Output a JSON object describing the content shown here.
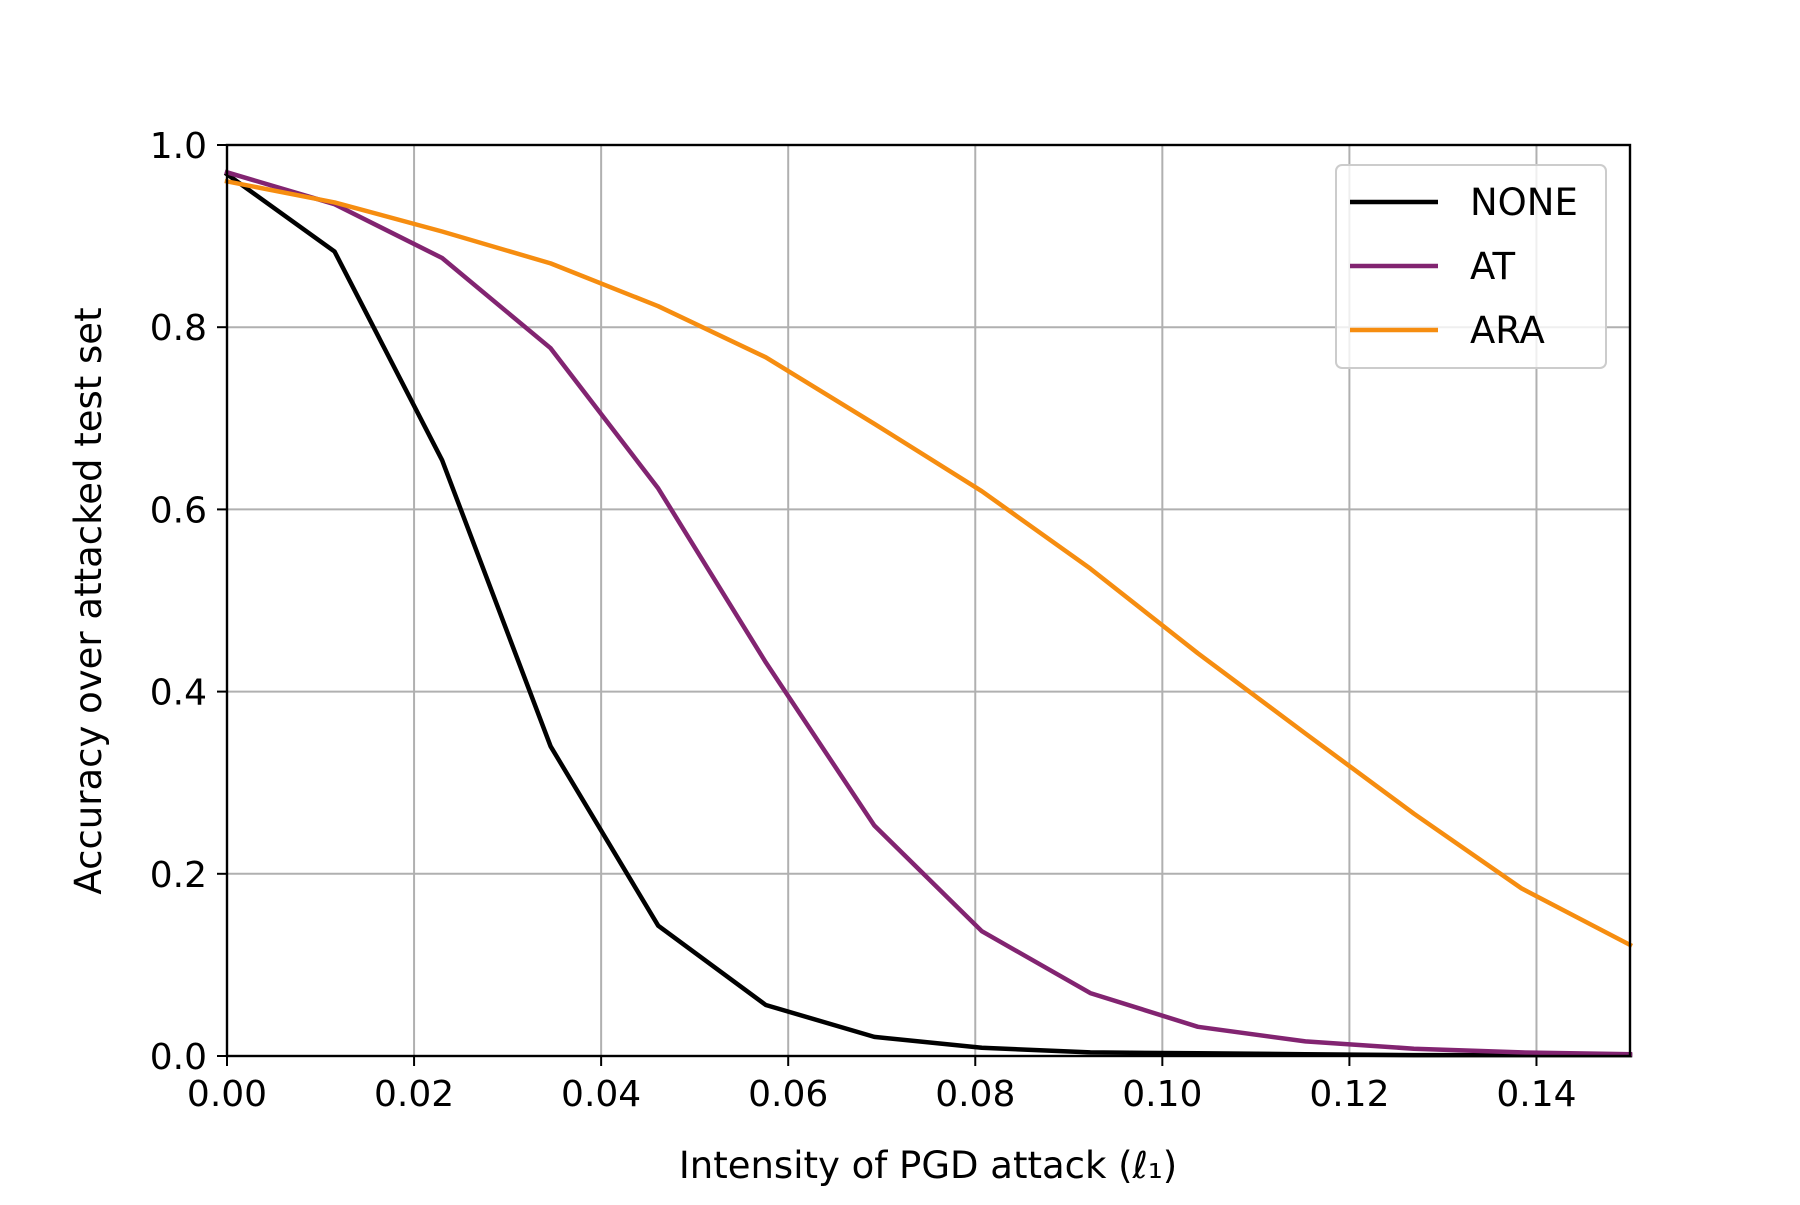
{
  "chart_data": {
    "type": "line",
    "title": "",
    "xlabel": "Intensity of PGD attack (ℓ₁)",
    "ylabel": "Accuracy over attacked test set",
    "xlim": [
      0.0,
      0.15
    ],
    "ylim": [
      0.0,
      1.0
    ],
    "xticks": [
      0.0,
      0.02,
      0.04,
      0.06,
      0.08,
      0.1,
      0.12,
      0.14
    ],
    "xtick_labels": [
      "0.00",
      "0.02",
      "0.04",
      "0.06",
      "0.08",
      "0.10",
      "0.12",
      "0.14"
    ],
    "yticks": [
      0.0,
      0.2,
      0.4,
      0.6,
      0.8,
      1.0
    ],
    "ytick_labels": [
      "0.0",
      "0.2",
      "0.4",
      "0.6",
      "0.8",
      "1.0"
    ],
    "grid": true,
    "legend_position": "top-right",
    "x": [
      0.0,
      0.0115,
      0.023,
      0.0346,
      0.0461,
      0.0576,
      0.0692,
      0.0807,
      0.0923,
      0.1038,
      0.1153,
      0.1269,
      0.1384,
      0.15
    ],
    "series": [
      {
        "name": "NONE",
        "color": "#000000",
        "values": [
          0.968,
          0.883,
          0.654,
          0.34,
          0.143,
          0.056,
          0.021,
          0.009,
          0.004,
          0.003,
          0.002,
          0.001,
          0.001,
          0.001
        ]
      },
      {
        "name": "AT",
        "color": "#822471",
        "values": [
          0.97,
          0.935,
          0.876,
          0.777,
          0.623,
          0.432,
          0.253,
          0.137,
          0.069,
          0.032,
          0.016,
          0.008,
          0.004,
          0.002
        ]
      },
      {
        "name": "ARA",
        "color": "#f68d10",
        "values": [
          0.96,
          0.937,
          0.905,
          0.87,
          0.823,
          0.767,
          0.694,
          0.62,
          0.535,
          0.442,
          0.354,
          0.266,
          0.184,
          0.122
        ]
      }
    ]
  }
}
